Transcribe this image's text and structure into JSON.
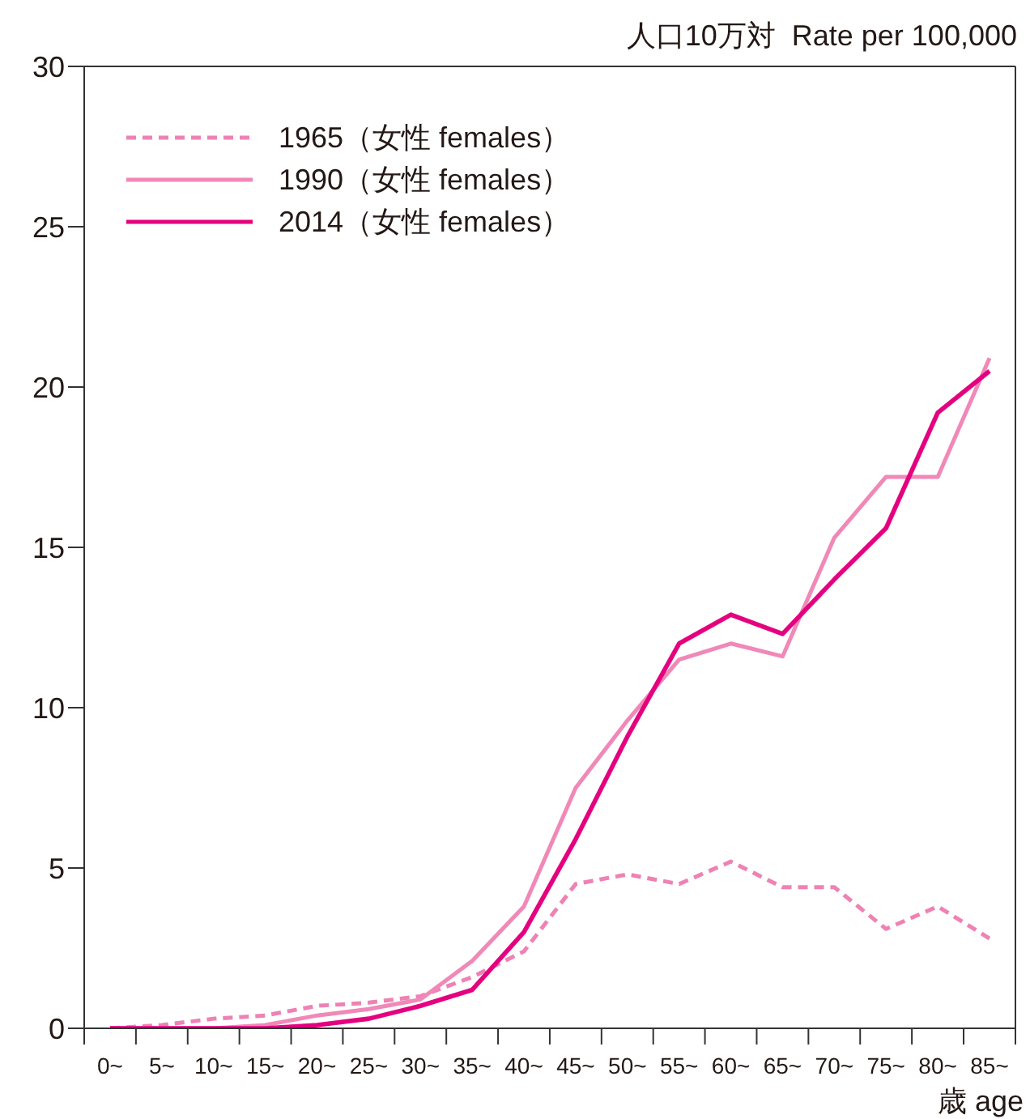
{
  "chart_data": {
    "type": "line",
    "ylabel": "人口10万対  Rate per 100,000",
    "xlabel": "歳 age",
    "categories": [
      "0~",
      "5~",
      "10~",
      "15~",
      "20~",
      "25~",
      "30~",
      "35~",
      "40~",
      "45~",
      "50~",
      "55~",
      "60~",
      "65~",
      "70~",
      "75~",
      "80~",
      "85~"
    ],
    "series": [
      {
        "name": "1965（女性 females）",
        "color": "#ee82b4",
        "line_style": "dashed",
        "values": [
          0,
          0.1,
          0.3,
          0.4,
          0.7,
          0.8,
          1.0,
          1.6,
          2.4,
          4.5,
          4.8,
          4.5,
          5.2,
          4.4,
          4.4,
          3.1,
          3.8,
          2.8
        ]
      },
      {
        "name": "1990（女性 females）",
        "color": "#f088b8",
        "line_style": "solid",
        "values": [
          0,
          0,
          0,
          0.1,
          0.4,
          0.6,
          0.9,
          2.1,
          3.8,
          7.5,
          9.6,
          11.5,
          12.0,
          11.6,
          15.3,
          17.2,
          17.2,
          20.9
        ]
      },
      {
        "name": "2014（女性 females）",
        "color": "#e4007f",
        "line_style": "solid",
        "values": [
          0,
          0,
          0,
          0,
          0.1,
          0.3,
          0.7,
          1.2,
          3.0,
          5.9,
          9.1,
          12.0,
          12.9,
          12.3,
          14.0,
          15.6,
          19.2,
          20.5
        ]
      }
    ],
    "ylim": [
      0,
      30
    ],
    "yticks": [
      0,
      5,
      10,
      15,
      20,
      25,
      30
    ],
    "grid": false,
    "legend": "top left",
    "marker": "none"
  }
}
